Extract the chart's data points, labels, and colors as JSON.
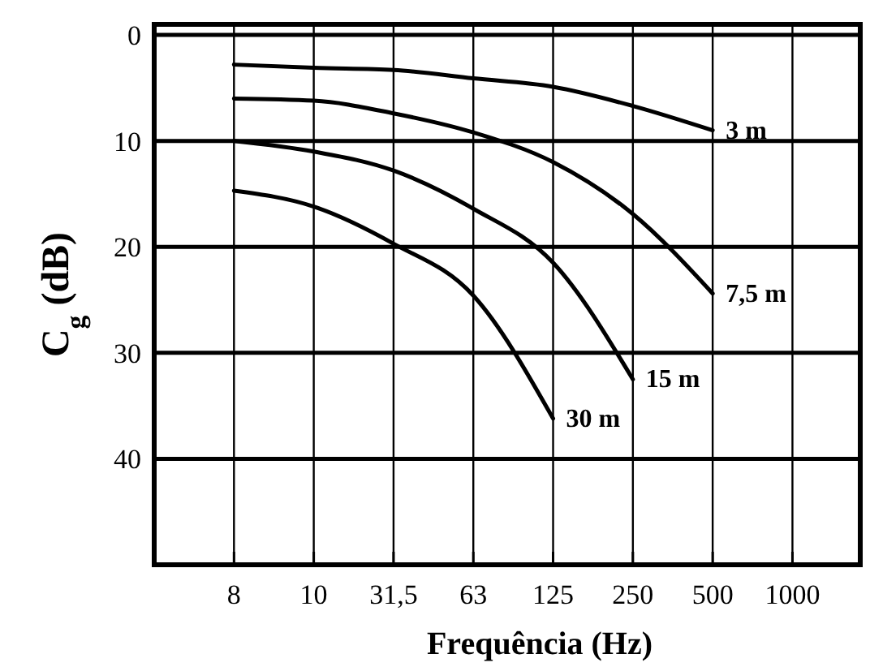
{
  "chart_data": {
    "type": "line",
    "xlabel": "Frequência (Hz)",
    "ylabel": "C$_{g}$ (dB)",
    "categories": [
      "8",
      "10",
      "31,5",
      "63",
      "125",
      "250",
      "500",
      "1000"
    ],
    "ylim": [
      50,
      -1
    ],
    "yticks": [
      0,
      10,
      20,
      30,
      40
    ],
    "grid": true,
    "marker": "none",
    "line_style": "solid",
    "series": [
      {
        "name": "3 m",
        "color": "#000000",
        "values": [
          2.8,
          3.1,
          3.3,
          4.1,
          4.9,
          6.7,
          9,
          null
        ]
      },
      {
        "name": "7,5 m",
        "color": "#000000",
        "values": [
          6,
          6.2,
          7.4,
          9.2,
          12,
          16.9,
          24.4,
          null
        ]
      },
      {
        "name": "15 m",
        "color": "#000000",
        "values": [
          10,
          11,
          12.8,
          16.4,
          21.5,
          32.5,
          null,
          null
        ]
      },
      {
        "name": "30 m",
        "color": "#000000",
        "values": [
          14.7,
          16.2,
          19.7,
          24.6,
          36.2,
          null,
          null,
          null
        ]
      }
    ]
  }
}
